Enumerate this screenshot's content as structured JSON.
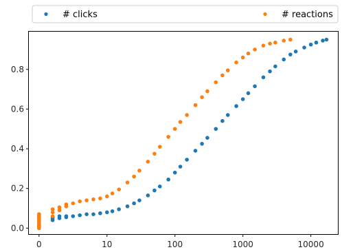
{
  "chart_data": {
    "type": "scatter",
    "title": "",
    "xlabel": "",
    "ylabel": "",
    "x_scale": "symlog",
    "x_linthresh": 10,
    "xlim": [
      -1.5,
      25000
    ],
    "ylim": [
      -0.03,
      0.99
    ],
    "x_ticks": [
      0,
      10,
      100,
      1000,
      10000
    ],
    "x_tick_labels": [
      "0",
      "10",
      "100",
      "1000",
      "10000"
    ],
    "y_ticks": [
      0.0,
      0.2,
      0.4,
      0.6,
      0.8
    ],
    "y_tick_labels": [
      "0.0",
      "0.2",
      "0.4",
      "0.6",
      "0.8"
    ],
    "grid": false,
    "legend": "top, spanning the full width above the plot",
    "series": [
      {
        "name": "# clicks",
        "color": "#1f77b4",
        "x": [
          0,
          0,
          0,
          0,
          0,
          0,
          0,
          0,
          2,
          2,
          2,
          3,
          3,
          4,
          4,
          5,
          6,
          7,
          8,
          9,
          10,
          12,
          15,
          20,
          25,
          30,
          40,
          50,
          60,
          80,
          100,
          120,
          150,
          200,
          250,
          300,
          400,
          500,
          600,
          800,
          1000,
          1200,
          1500,
          2000,
          2500,
          3000,
          4000,
          5000,
          6000,
          8000,
          10000,
          12000,
          15000,
          17000
        ],
        "y": [
          0.0,
          0.01,
          0.02,
          0.03,
          0.04,
          0.05,
          0.06,
          0.07,
          0.04,
          0.05,
          0.055,
          0.05,
          0.06,
          0.055,
          0.06,
          0.06,
          0.065,
          0.07,
          0.07,
          0.075,
          0.08,
          0.085,
          0.095,
          0.11,
          0.125,
          0.14,
          0.165,
          0.19,
          0.21,
          0.245,
          0.28,
          0.31,
          0.345,
          0.39,
          0.425,
          0.455,
          0.5,
          0.54,
          0.57,
          0.615,
          0.65,
          0.68,
          0.715,
          0.76,
          0.79,
          0.815,
          0.85,
          0.875,
          0.89,
          0.91,
          0.925,
          0.935,
          0.945,
          0.95
        ]
      },
      {
        "name": "# reactions",
        "color": "#ff7f0e",
        "x": [
          0,
          0,
          0,
          0,
          0,
          0,
          0,
          0,
          2,
          2,
          2,
          3,
          3,
          4,
          4,
          5,
          6,
          7,
          8,
          9,
          10,
          12,
          15,
          20,
          25,
          30,
          40,
          50,
          60,
          80,
          100,
          120,
          150,
          200,
          250,
          300,
          400,
          500,
          600,
          800,
          1000,
          1200,
          1500,
          2000,
          2500,
          3000,
          4000,
          5000
        ],
        "y": [
          0.0,
          0.01,
          0.02,
          0.03,
          0.04,
          0.05,
          0.06,
          0.07,
          0.06,
          0.08,
          0.095,
          0.09,
          0.105,
          0.11,
          0.12,
          0.125,
          0.135,
          0.14,
          0.145,
          0.15,
          0.16,
          0.175,
          0.195,
          0.23,
          0.26,
          0.29,
          0.335,
          0.375,
          0.41,
          0.46,
          0.5,
          0.535,
          0.57,
          0.62,
          0.66,
          0.69,
          0.735,
          0.77,
          0.795,
          0.835,
          0.86,
          0.88,
          0.9,
          0.92,
          0.93,
          0.935,
          0.945,
          0.95
        ]
      }
    ]
  }
}
